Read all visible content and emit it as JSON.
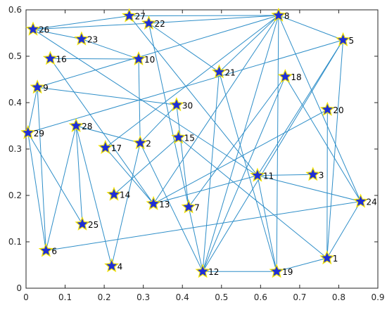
{
  "chart_data": {
    "type": "scatter",
    "title": "",
    "xlabel": "",
    "ylabel": "",
    "xlim": [
      0,
      0.9
    ],
    "ylim": [
      0,
      0.6
    ],
    "x_ticks": [
      "0",
      "0.1",
      "0.2",
      "0.3",
      "0.4",
      "0.5",
      "0.6",
      "0.7",
      "0.8",
      "0.9"
    ],
    "y_ticks": [
      "0",
      "0.1",
      "0.2",
      "0.3",
      "0.4",
      "0.5",
      "0.6"
    ],
    "grid": false,
    "marker": "star",
    "colors": {
      "marker_fill": "#1f2fd6",
      "marker_edge": "#f2e200",
      "edge": "#2e8ec8",
      "axis": "#262626"
    },
    "nodes": [
      {
        "id": "1",
        "x": 0.77,
        "y": 0.065
      },
      {
        "id": "2",
        "x": 0.292,
        "y": 0.313
      },
      {
        "id": "3",
        "x": 0.734,
        "y": 0.245
      },
      {
        "id": "4",
        "x": 0.219,
        "y": 0.048
      },
      {
        "id": "5",
        "x": 0.811,
        "y": 0.535
      },
      {
        "id": "6",
        "x": 0.051,
        "y": 0.081
      },
      {
        "id": "7",
        "x": 0.416,
        "y": 0.175
      },
      {
        "id": "8",
        "x": 0.646,
        "y": 0.588
      },
      {
        "id": "9",
        "x": 0.029,
        "y": 0.433
      },
      {
        "id": "10",
        "x": 0.288,
        "y": 0.494
      },
      {
        "id": "11",
        "x": 0.592,
        "y": 0.243
      },
      {
        "id": "12",
        "x": 0.452,
        "y": 0.036
      },
      {
        "id": "13",
        "x": 0.326,
        "y": 0.182
      },
      {
        "id": "14",
        "x": 0.225,
        "y": 0.202
      },
      {
        "id": "15",
        "x": 0.39,
        "y": 0.325
      },
      {
        "id": "16",
        "x": 0.062,
        "y": 0.495
      },
      {
        "id": "17",
        "x": 0.203,
        "y": 0.303
      },
      {
        "id": "18",
        "x": 0.663,
        "y": 0.456
      },
      {
        "id": "19",
        "x": 0.641,
        "y": 0.036
      },
      {
        "id": "20",
        "x": 0.771,
        "y": 0.385
      },
      {
        "id": "21",
        "x": 0.494,
        "y": 0.466
      },
      {
        "id": "22",
        "x": 0.314,
        "y": 0.571
      },
      {
        "id": "23",
        "x": 0.142,
        "y": 0.537
      },
      {
        "id": "24",
        "x": 0.856,
        "y": 0.187
      },
      {
        "id": "25",
        "x": 0.144,
        "y": 0.138
      },
      {
        "id": "26",
        "x": 0.018,
        "y": 0.558
      },
      {
        "id": "27",
        "x": 0.264,
        "y": 0.587
      },
      {
        "id": "28",
        "x": 0.128,
        "y": 0.35
      },
      {
        "id": "29",
        "x": 0.005,
        "y": 0.335
      },
      {
        "id": "30",
        "x": 0.385,
        "y": 0.395
      }
    ],
    "edges": [
      [
        "26",
        "27"
      ],
      [
        "27",
        "8"
      ],
      [
        "26",
        "22"
      ],
      [
        "22",
        "8"
      ],
      [
        "26",
        "23"
      ],
      [
        "23",
        "10"
      ],
      [
        "26",
        "11"
      ],
      [
        "22",
        "21"
      ],
      [
        "22",
        "12"
      ],
      [
        "27",
        "11"
      ],
      [
        "21",
        "19"
      ],
      [
        "21",
        "12"
      ],
      [
        "8",
        "21"
      ],
      [
        "8",
        "5"
      ],
      [
        "8",
        "13"
      ],
      [
        "8",
        "12"
      ],
      [
        "8",
        "19"
      ],
      [
        "8",
        "24"
      ],
      [
        "8",
        "9"
      ],
      [
        "8",
        "17"
      ],
      [
        "5",
        "12"
      ],
      [
        "5",
        "29"
      ],
      [
        "5",
        "11"
      ],
      [
        "5",
        "1"
      ],
      [
        "16",
        "10"
      ],
      [
        "16",
        "13"
      ],
      [
        "9",
        "30"
      ],
      [
        "30",
        "7"
      ],
      [
        "30",
        "2"
      ],
      [
        "18",
        "7"
      ],
      [
        "18",
        "24"
      ],
      [
        "20",
        "13"
      ],
      [
        "20",
        "1"
      ],
      [
        "15",
        "14"
      ],
      [
        "15",
        "1"
      ],
      [
        "28",
        "2"
      ],
      [
        "28",
        "4"
      ],
      [
        "28",
        "25"
      ],
      [
        "2",
        "4"
      ],
      [
        "2",
        "12"
      ],
      [
        "10",
        "2"
      ],
      [
        "17",
        "13"
      ],
      [
        "29",
        "9"
      ],
      [
        "29",
        "6"
      ],
      [
        "29",
        "25"
      ],
      [
        "9",
        "6"
      ],
      [
        "13",
        "11"
      ],
      [
        "11",
        "3"
      ],
      [
        "11",
        "19"
      ],
      [
        "11",
        "24"
      ],
      [
        "12",
        "19"
      ],
      [
        "19",
        "1"
      ],
      [
        "24",
        "1"
      ],
      [
        "24",
        "6"
      ],
      [
        "6",
        "28"
      ],
      [
        "12",
        "18"
      ]
    ]
  }
}
